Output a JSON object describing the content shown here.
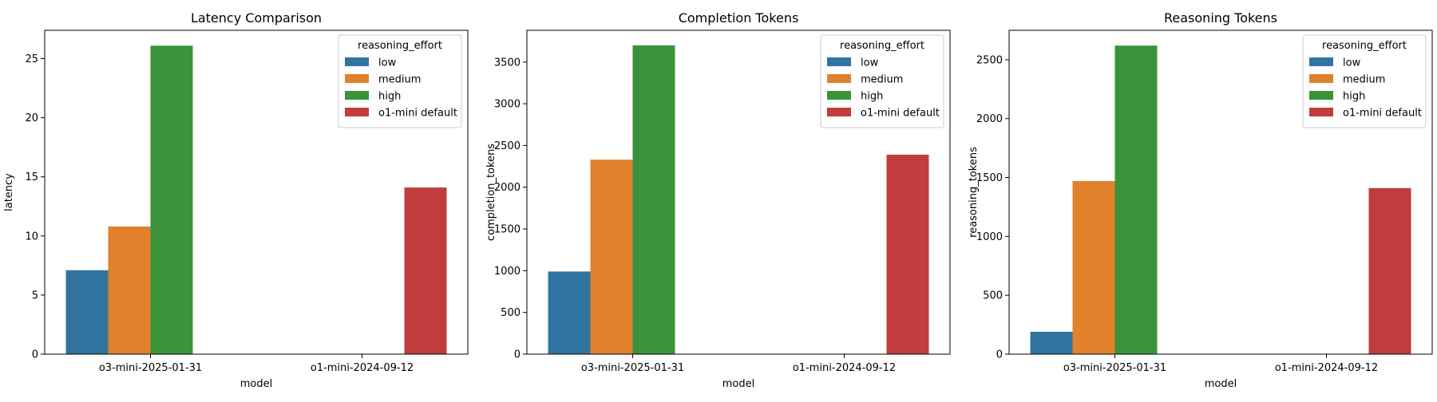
{
  "chart_data": [
    {
      "type": "bar",
      "title": "Latency Comparison",
      "xlabel": "model",
      "ylabel": "latency",
      "categories": [
        "o3-mini-2025-01-31",
        "o1-mini-2024-09-12"
      ],
      "ylim": [
        0,
        27.4
      ],
      "yticks": [
        0,
        5,
        10,
        15,
        20,
        25
      ],
      "legend": {
        "title": "reasoning_effort",
        "placement": "top-right"
      },
      "series": [
        {
          "name": "low",
          "color": "#3274a1",
          "values": [
            7.1,
            null
          ]
        },
        {
          "name": "medium",
          "color": "#e1812c",
          "values": [
            10.8,
            null
          ]
        },
        {
          "name": "high",
          "color": "#3a923a",
          "values": [
            26.1,
            null
          ]
        },
        {
          "name": "o1-mini default",
          "color": "#c03d3e",
          "values": [
            null,
            14.1
          ]
        }
      ]
    },
    {
      "type": "bar",
      "title": "Completion Tokens",
      "xlabel": "model",
      "ylabel": "completion_tokens",
      "categories": [
        "o3-mini-2025-01-31",
        "o1-mini-2024-09-12"
      ],
      "ylim": [
        0,
        3880
      ],
      "yticks": [
        0,
        500,
        1000,
        1500,
        2000,
        2500,
        3000,
        3500
      ],
      "legend": {
        "title": "reasoning_effort",
        "placement": "top-right"
      },
      "series": [
        {
          "name": "low",
          "color": "#3274a1",
          "values": [
            990,
            null
          ]
        },
        {
          "name": "medium",
          "color": "#e1812c",
          "values": [
            2330,
            null
          ]
        },
        {
          "name": "high",
          "color": "#3a923a",
          "values": [
            3700,
            null
          ]
        },
        {
          "name": "o1-mini default",
          "color": "#c03d3e",
          "values": [
            null,
            2390
          ]
        }
      ]
    },
    {
      "type": "bar",
      "title": "Reasoning Tokens",
      "xlabel": "model",
      "ylabel": "reasoning_tokens",
      "categories": [
        "o3-mini-2025-01-31",
        "o1-mini-2024-09-12"
      ],
      "ylim": [
        0,
        2750
      ],
      "yticks": [
        0,
        500,
        1000,
        1500,
        2000,
        2500
      ],
      "legend": {
        "title": "reasoning_effort",
        "placement": "top-right"
      },
      "series": [
        {
          "name": "low",
          "color": "#3274a1",
          "values": [
            190,
            null
          ]
        },
        {
          "name": "medium",
          "color": "#e1812c",
          "values": [
            1470,
            null
          ]
        },
        {
          "name": "high",
          "color": "#3a923a",
          "values": [
            2620,
            null
          ]
        },
        {
          "name": "o1-mini default",
          "color": "#c03d3e",
          "values": [
            null,
            1410
          ]
        }
      ]
    }
  ]
}
